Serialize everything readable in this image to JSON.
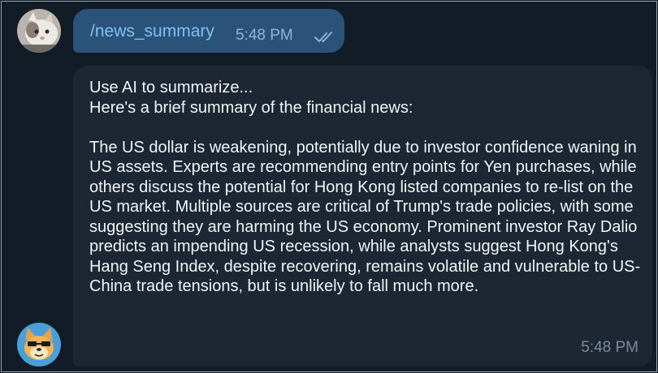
{
  "outgoing": {
    "text": "/news_summary",
    "time": "5:48 PM",
    "status_icon": "double-check-icon"
  },
  "incoming": {
    "line1": "Use AI to summarize...",
    "line2": "Here's a brief summary of the financial news:",
    "body": "The US dollar is weakening, potentially due to investor confidence waning in US assets. Experts are recommending entry points for Yen purchases, while others discuss the potential for Hong Kong listed companies to re-list on the US market. Multiple sources are critical of Trump's trade policies, with some suggesting they are harming the US economy. Prominent investor Ray Dalio predicts an impending US recession, while analysts suggest Hong Kong's Hang Seng Index, despite recovering, remains volatile and vulnerable to US-China trade tensions, but is unlikely to fall much more.",
    "time": "5:48 PM"
  },
  "colors": {
    "background": "#111c27",
    "outgoing_bubble": "#2b5278",
    "incoming_bubble": "#1c2733",
    "command_link": "#7fc1f5"
  }
}
